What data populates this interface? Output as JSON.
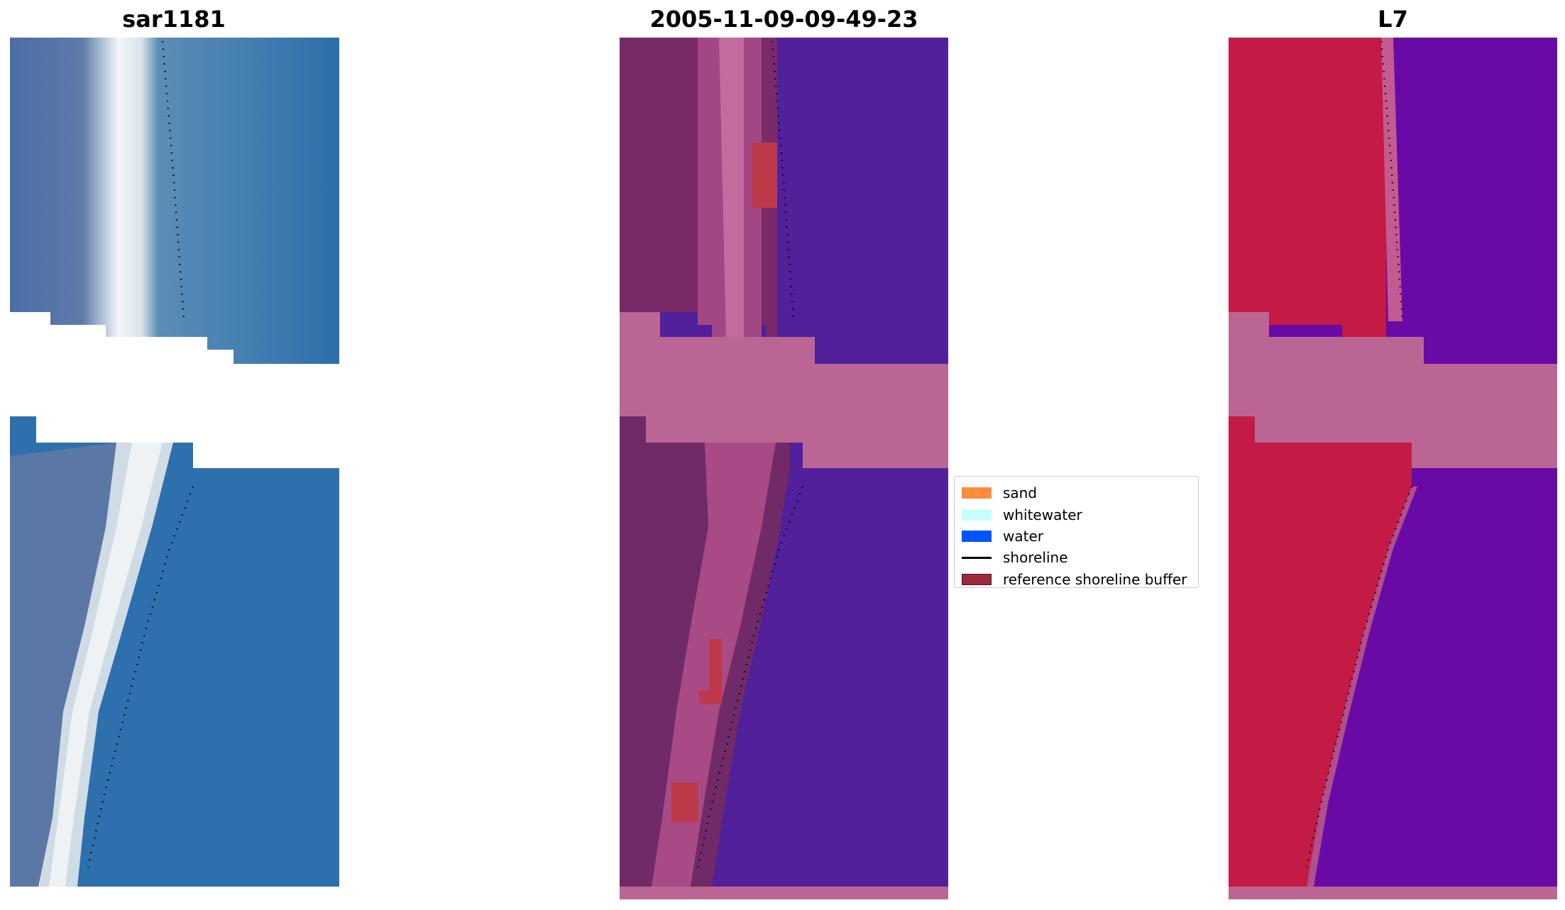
{
  "titles": {
    "left": "sar1181",
    "middle": "2005-11-09-09-49-23",
    "right": "L7"
  },
  "legend": {
    "items": [
      {
        "label": "sand",
        "color": "#ff8c3c"
      },
      {
        "label": "whitewater",
        "color": "#c8fdfd"
      },
      {
        "label": "water",
        "color": "#0055f8"
      },
      {
        "label": "shoreline",
        "color": "#000000"
      },
      {
        "label": "reference shoreline buffer",
        "color": "#9b2a3a"
      }
    ]
  },
  "colors": {
    "water_rgb": "#2d72ad",
    "beach_rgb": "#e8eef2",
    "class_water": "#51209a",
    "class_cloud": "#bb6595",
    "class_land": "#7a2a68",
    "buffer_red": "#bd3a4a",
    "ndwi_land": "#c41a46",
    "ndwi_water": "#6a0aa6"
  }
}
